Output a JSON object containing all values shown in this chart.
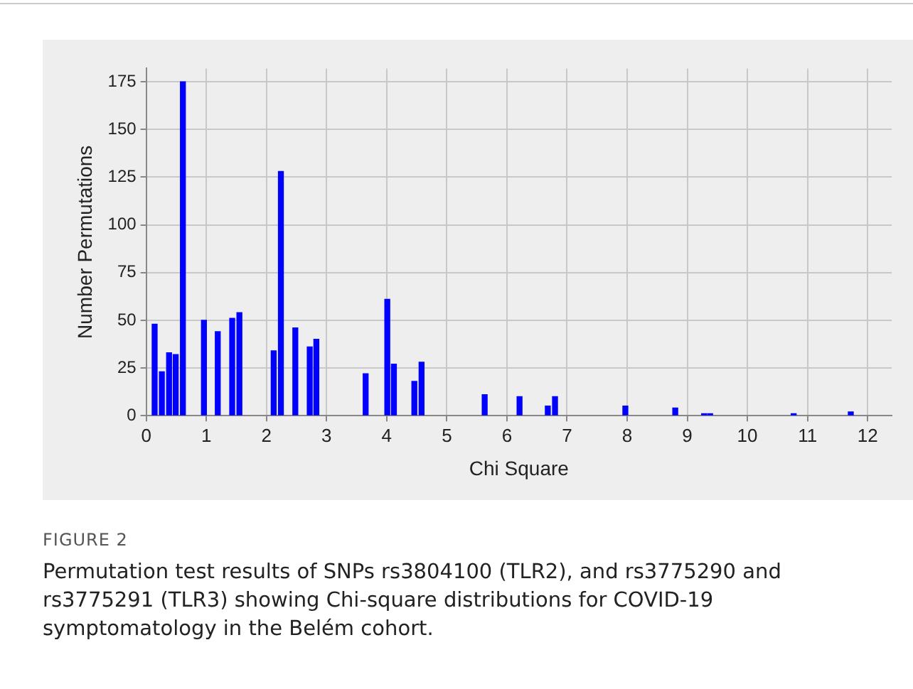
{
  "chart_data": {
    "type": "bar",
    "xlabel": "Chi Square",
    "ylabel": "Number Permutations",
    "x": [
      0.14,
      0.26,
      0.38,
      0.49,
      0.61,
      0.96,
      1.19,
      1.43,
      1.55,
      2.12,
      2.24,
      2.48,
      2.72,
      2.83,
      3.65,
      4.01,
      4.12,
      4.46,
      4.58,
      5.63,
      6.21,
      6.68,
      6.8,
      7.97,
      8.8,
      9.28,
      9.38,
      10.77,
      11.72
    ],
    "values": [
      48,
      23,
      33,
      32,
      175,
      50,
      44,
      51,
      54,
      34,
      128,
      46,
      36,
      40,
      22,
      61,
      27,
      18,
      28,
      11,
      10,
      5,
      10,
      5,
      4,
      1,
      1,
      1,
      2
    ],
    "color": "#0000ff",
    "xlim": [
      0,
      12.4
    ],
    "xticks": [
      0,
      1,
      2,
      3,
      4,
      5,
      6,
      7,
      8,
      9,
      10,
      11,
      12
    ],
    "ylim": [
      0,
      182
    ],
    "yticks": [
      0,
      25,
      50,
      75,
      100,
      125,
      150,
      175
    ],
    "grid": true,
    "legend": false,
    "annotations": [
      "FIGURE 2",
      "Permutation test results of SNPs rs3804100 (TLR2), and rs3775290 and rs3775291 (TLR3) showing Chi-square distributions for COVID-19 symptomatology in the Belém cohort."
    ]
  }
}
